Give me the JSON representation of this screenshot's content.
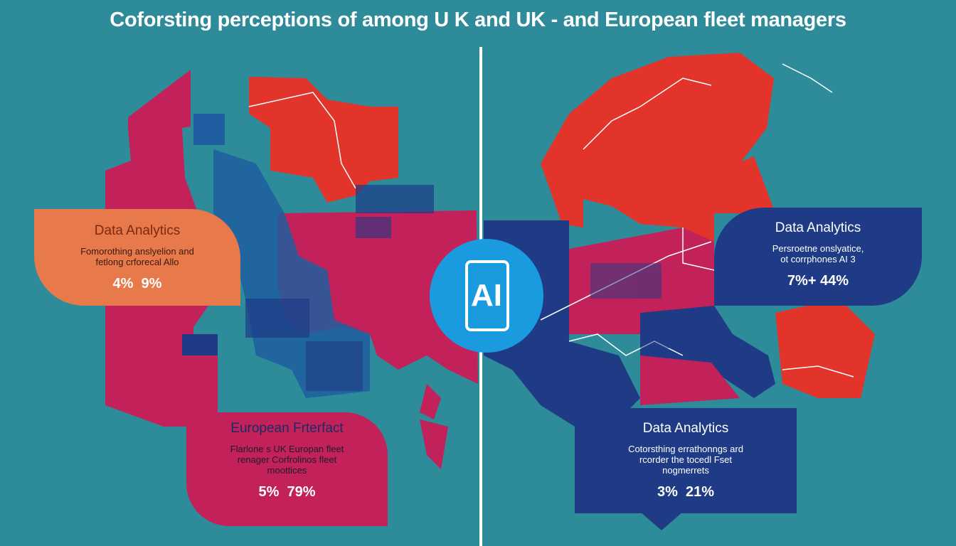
{
  "title": "Coforsting perceptions of  among U K and UK - and European fleet managers",
  "colors": {
    "background": "#2e8c9a",
    "uk_magenta": "#c3215a",
    "europe_red": "#e2342a",
    "navy": "#1f3b86",
    "orange": "#e8794a",
    "ai_blue": "#1a9be0"
  },
  "center_badge": {
    "label": "AI",
    "icon": "ai-chip-icon"
  },
  "cards": {
    "upper_left": {
      "heading": "Data Analytics",
      "description_line1": "Fomorothing anslyelion and",
      "description_line2": "fetlong crforecal Allo",
      "values": "4%  9%"
    },
    "upper_right": {
      "heading": "Data Analytics",
      "description_line1": "Persroetne onslyatice,",
      "description_line2": "ot corrphones AI 3",
      "values": "7%+ 44%"
    },
    "lower_left": {
      "heading": "European Frterfact",
      "description_line1": "Flarlone s UK Europan fleet",
      "description_line2": "renager Corfrolinos fleet",
      "description_line3": "moottices",
      "values": "5%  79%"
    },
    "lower_right": {
      "heading": "Data Analytics",
      "description_line1": "Cotorsthing errathonngs ard",
      "description_line2": "rcorder the tocedl Fset",
      "description_line3": "nogmerrets",
      "values": "3%  21%"
    }
  }
}
